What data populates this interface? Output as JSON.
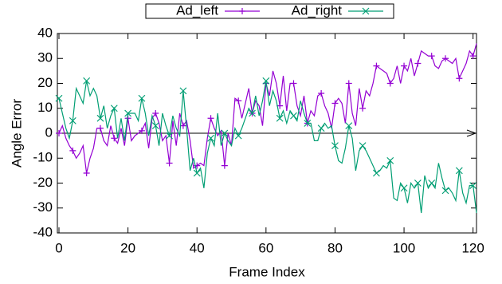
{
  "chart_data": {
    "type": "line",
    "x_label": "Frame Index",
    "y_label": "Angle Error",
    "x": [
      0,
      1,
      2,
      3,
      4,
      5,
      6,
      7,
      8,
      9,
      10,
      11,
      12,
      13,
      14,
      15,
      16,
      17,
      18,
      19,
      20,
      21,
      22,
      23,
      24,
      25,
      26,
      27,
      28,
      29,
      30,
      31,
      32,
      33,
      34,
      35,
      36,
      37,
      38,
      39,
      40,
      41,
      42,
      43,
      44,
      45,
      46,
      47,
      48,
      49,
      50,
      51,
      52,
      53,
      54,
      55,
      56,
      57,
      58,
      59,
      60,
      61,
      62,
      63,
      64,
      65,
      66,
      67,
      68,
      69,
      70,
      71,
      72,
      73,
      74,
      75,
      76,
      77,
      78,
      79,
      80,
      81,
      82,
      83,
      84,
      85,
      86,
      87,
      88,
      89,
      90,
      91,
      92,
      93,
      94,
      95,
      96,
      97,
      98,
      99,
      100,
      101,
      102,
      103,
      104,
      105,
      106,
      107,
      108,
      109,
      110,
      111,
      112,
      113,
      114,
      115,
      116,
      117,
      118,
      119,
      120,
      121
    ],
    "series": [
      {
        "name": "Ad_left",
        "color": "#9400d3",
        "marker": "plus",
        "values": [
          0,
          3,
          -2,
          -5,
          -7,
          -10,
          -8,
          -5,
          -16,
          -10,
          -6,
          2,
          2,
          -3,
          -5,
          3,
          -2,
          -4,
          2,
          -5,
          6,
          -3,
          -1,
          0,
          1,
          4,
          -6,
          6,
          8,
          4,
          -3,
          -1,
          -12,
          5,
          -5,
          8,
          3,
          5,
          -3,
          -14,
          -13,
          -12,
          -13,
          -2,
          6,
          2,
          -1,
          1,
          -13,
          0,
          -5,
          14,
          13,
          6,
          12,
          18,
          8,
          13,
          11,
          3,
          20,
          15,
          25,
          20,
          11,
          23,
          9,
          20,
          20,
          11,
          7,
          15,
          4,
          9,
          7,
          15,
          16,
          11,
          8,
          2,
          12,
          14,
          12,
          4,
          20,
          8,
          3,
          18,
          10,
          17,
          15,
          20,
          27,
          26,
          25,
          24,
          20,
          22,
          27,
          20,
          27,
          25,
          30,
          23,
          28,
          33,
          32,
          31,
          31,
          27,
          26,
          29,
          30,
          29,
          28,
          30,
          22,
          25,
          28,
          33,
          31,
          36
        ]
      },
      {
        "name": "Ad_right",
        "color": "#009e73",
        "marker": "cross",
        "values": [
          14,
          8,
          2,
          -2,
          5,
          18,
          15,
          12,
          21,
          15,
          18,
          15,
          6,
          11,
          2,
          7,
          10,
          -2,
          6,
          -3,
          8,
          8,
          8,
          5,
          14,
          8,
          -1,
          7,
          3,
          -5,
          8,
          3,
          -1,
          7,
          2,
          -1,
          17,
          2,
          -15,
          -10,
          -16,
          -14,
          -22,
          -8,
          -2,
          -5,
          8,
          -5,
          0,
          -3,
          -5,
          2,
          -1,
          2,
          6,
          10,
          8,
          15,
          7,
          13,
          21,
          11,
          17,
          13,
          6,
          9,
          4,
          9,
          7,
          5,
          13,
          8,
          4,
          4,
          -3,
          -3,
          2,
          4,
          2,
          3,
          -5,
          -11,
          -12,
          -6,
          3,
          -2,
          -15,
          -7,
          -5,
          -7,
          -10,
          -13,
          -16,
          -15,
          -13,
          -14,
          -11,
          -26,
          -27,
          -20,
          -22,
          -28,
          -20,
          -22,
          -20,
          -32,
          -17,
          -22,
          -20,
          -22,
          -12,
          -18,
          -23,
          -22,
          -24,
          -27,
          -15,
          -24,
          -28,
          -21,
          -21,
          -32
        ]
      }
    ],
    "xlim": [
      0,
      121
    ],
    "ylim": [
      -40,
      40
    ],
    "xticks": [
      0,
      20,
      40,
      60,
      80,
      100,
      120
    ],
    "yticks": [
      -40,
      -30,
      -20,
      -10,
      0,
      10,
      20,
      30,
      40
    ],
    "point_interval": 4,
    "grid": false,
    "legend_position": "top"
  }
}
